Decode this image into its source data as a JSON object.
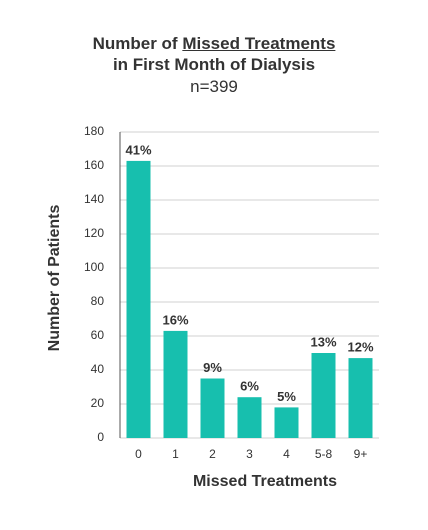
{
  "chart_data": {
    "type": "bar",
    "title": [
      [
        "Number of",
        "Missed Treatments"
      ],
      [
        "in First Month of Dialysis"
      ]
    ],
    "subtitle": "n=399",
    "x_label": "Missed Treatments",
    "y_label": "Number of Patients",
    "categories": [
      "0",
      "1",
      "2",
      "3",
      "4",
      "5-8",
      "9+"
    ],
    "values": [
      163,
      63,
      35,
      24,
      18,
      50,
      47
    ],
    "value_labels": [
      "41%",
      "16%",
      "9%",
      "6%",
      "5%",
      "13%",
      "12%"
    ],
    "color": "#17bfae",
    "ylim": [
      0,
      180
    ],
    "yticks": [
      0,
      20,
      40,
      60,
      80,
      100,
      120,
      140,
      160,
      180
    ],
    "grid": true
  }
}
